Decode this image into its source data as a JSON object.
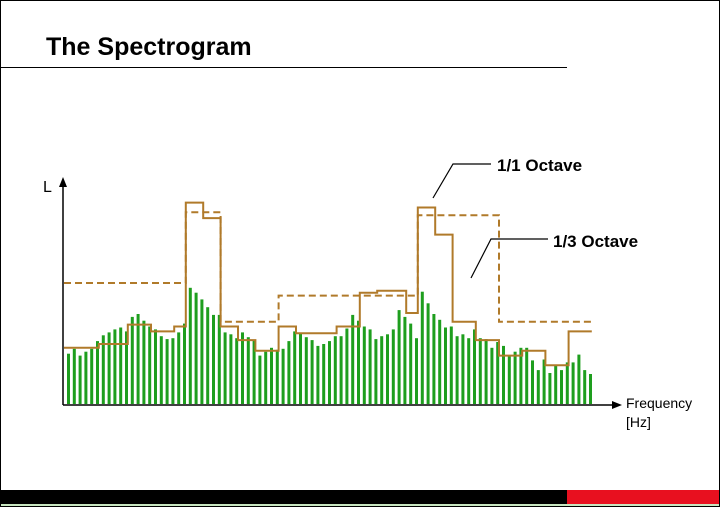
{
  "slide": {
    "title": "The Spectrogram"
  },
  "diagram": {
    "y_axis_label": "L",
    "x_axis_label_line1": "Frequency",
    "x_axis_label_line2": "[Hz]",
    "octave_label": "1/1 Octave",
    "third_octave_label": "1/3 Octave",
    "narrowband_levels": [
      52,
      57,
      50,
      54,
      57,
      65,
      71,
      74,
      77,
      79,
      75,
      90,
      93,
      86,
      80,
      77,
      70,
      67,
      68,
      74,
      83,
      120,
      115,
      108,
      100,
      92,
      92,
      74,
      72,
      68,
      74,
      69,
      66,
      50,
      54,
      58,
      56,
      57,
      65,
      75,
      73,
      69,
      66,
      60,
      62,
      65,
      70,
      70,
      78,
      92,
      86,
      80,
      77,
      67,
      70,
      72,
      77,
      97,
      90,
      83,
      68,
      116,
      104,
      93,
      87,
      79,
      80,
      70,
      72,
      68,
      77,
      68,
      67,
      58,
      64,
      60,
      50,
      54,
      58,
      58,
      45,
      35,
      46,
      32,
      40,
      35,
      43,
      43,
      51,
      35,
      31
    ],
    "third_octave_levels": [
      58,
      58,
      58,
      58,
      58,
      58,
      62,
      62,
      62,
      62,
      62,
      82,
      82,
      82,
      82,
      75,
      75,
      75,
      75,
      80,
      80,
      208,
      208,
      208,
      192,
      192,
      192,
      80,
      80,
      80,
      66,
      66,
      66,
      55,
      55,
      55,
      55,
      80,
      80,
      80,
      73,
      73,
      73,
      73,
      73,
      73,
      73,
      80,
      80,
      80,
      80,
      115,
      115,
      115,
      117,
      117,
      117,
      117,
      117,
      94,
      94,
      203,
      203,
      203,
      175,
      175,
      175,
      85,
      85,
      85,
      85,
      66,
      66,
      66,
      66,
      50,
      50,
      50,
      50,
      55,
      55,
      55,
      55,
      40,
      40,
      40,
      40,
      75,
      75,
      75,
      75
    ],
    "octave_levels": [
      125,
      125,
      125,
      125,
      125,
      125,
      125,
      125,
      125,
      125,
      125,
      125,
      125,
      125,
      125,
      125,
      125,
      125,
      125,
      125,
      125,
      198,
      198,
      198,
      198,
      198,
      198,
      85,
      85,
      85,
      85,
      85,
      85,
      85,
      85,
      85,
      85,
      112,
      112,
      112,
      112,
      112,
      112,
      112,
      112,
      112,
      112,
      112,
      112,
      112,
      112,
      112,
      112,
      112,
      112,
      112,
      112,
      112,
      112,
      112,
      112,
      195,
      195,
      195,
      195,
      195,
      195,
      195,
      195,
      195,
      195,
      195,
      195,
      195,
      195,
      85,
      85,
      85,
      85,
      85,
      85,
      85,
      85,
      85,
      85,
      85,
      85,
      85,
      85,
      85,
      85
    ],
    "colors": {
      "bars": "#1e9e1e",
      "bands": "#b07a2a",
      "axis": "#000000"
    },
    "footer_colors": {
      "left": "#000000",
      "right": "#e8101f"
    }
  }
}
